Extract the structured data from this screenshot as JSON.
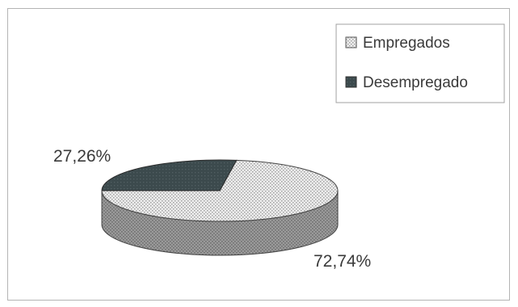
{
  "chart_data": {
    "type": "pie",
    "style": "3d-pie",
    "series": [
      {
        "name": "Empregados",
        "value": 72.74,
        "label": "72,74%",
        "color": "#e2e2e2",
        "pattern": "dotted-light"
      },
      {
        "name": "Desempregado",
        "value": 27.26,
        "label": "27,26%",
        "color": "#3c4a4d",
        "pattern": "solid-dark"
      }
    ],
    "legend_placement": "top-right",
    "colors": {
      "frame": "#b4b4b4",
      "side": "#8c8c8c",
      "text": "#3a3a3a"
    }
  }
}
